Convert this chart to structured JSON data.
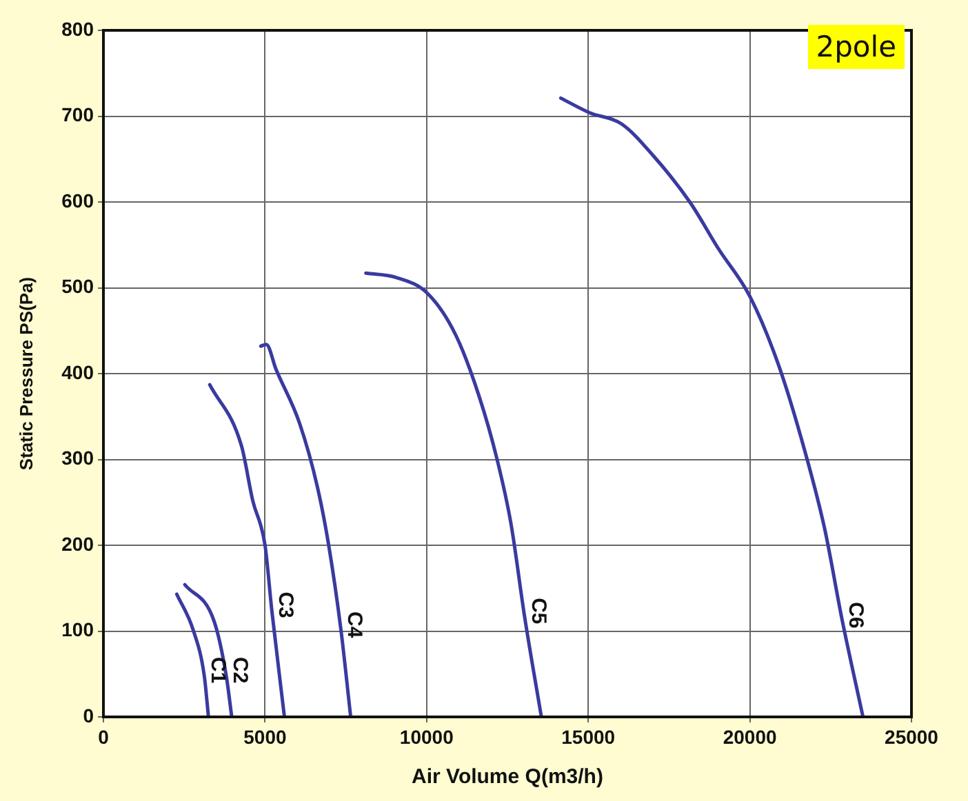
{
  "chart_data": {
    "type": "line",
    "xlabel": "Air Volume Q(m3/h)",
    "ylabel": "Static Pressure PS(Pa)",
    "xlim": [
      0,
      25000
    ],
    "xticks": [
      0,
      5000,
      10000,
      15000,
      20000,
      25000
    ],
    "ylim": [
      0,
      800
    ],
    "yticks": [
      0,
      100,
      200,
      300,
      400,
      500,
      600,
      700,
      800
    ],
    "grid": true,
    "legend": false,
    "marker": "none",
    "line_style": "solid",
    "annotations": [
      "2pole"
    ],
    "series": [
      {
        "name": "C1",
        "color": "#3a3aa0",
        "x": [
          2270,
          2780,
          3120,
          3250
        ],
        "values": [
          143,
          101,
          48,
          0
        ]
      },
      {
        "name": "C2",
        "color": "#3a3aa0",
        "x": [
          2520,
          3420,
          3800,
          3970
        ],
        "values": [
          154,
          112,
          48,
          0
        ]
      },
      {
        "name": "C3",
        "color": "#3a3aa0",
        "x": [
          3290,
          4270,
          4620,
          5000,
          5210,
          5600
        ],
        "values": [
          387,
          316,
          252,
          200,
          124,
          0
        ]
      },
      {
        "name": "C4",
        "color": "#3a3aa0",
        "x": [
          4870,
          5040,
          5340,
          6070,
          6620,
          6970,
          7350,
          7650
        ],
        "values": [
          432,
          434,
          405,
          342,
          268,
          200,
          101,
          0
        ]
      },
      {
        "name": "C5",
        "color": "#3a3aa0",
        "x": [
          8120,
          9060,
          10040,
          10900,
          11620,
          12180,
          12610,
          13030,
          13550
        ],
        "values": [
          517,
          512,
          493,
          445,
          374,
          300,
          225,
          117,
          0
        ]
      },
      {
        "name": "C6",
        "color": "#3a3aa0",
        "x": [
          14150,
          15040,
          16030,
          17010,
          18160,
          19020,
          20000,
          20860,
          21580,
          22310,
          22860,
          23500
        ],
        "values": [
          721,
          704,
          691,
          654,
          599,
          546,
          490,
          413,
          326,
          220,
          112,
          0
        ]
      }
    ]
  }
}
